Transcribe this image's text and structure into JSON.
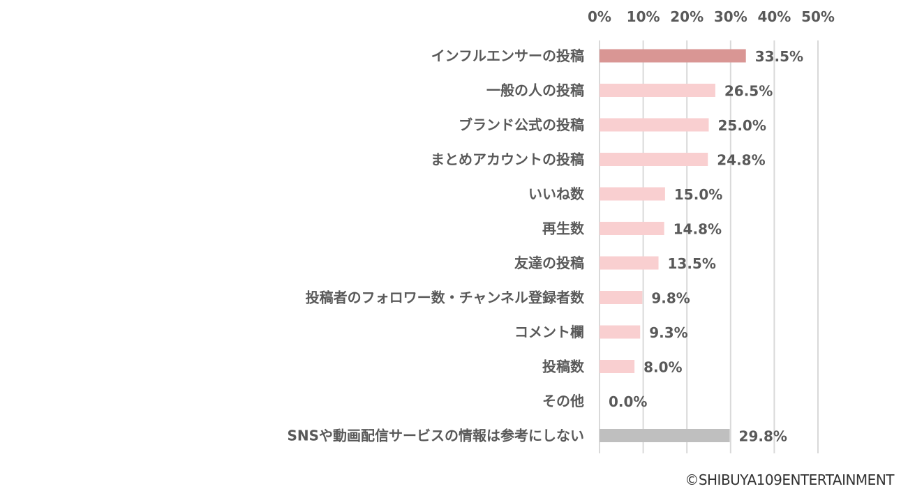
{
  "chart_data": {
    "type": "bar",
    "orientation": "horizontal",
    "categories": [
      "インフルエンサーの投稿",
      "一般の人の投稿",
      "ブランド公式の投稿",
      "まとめアカウントの投稿",
      "いいね数",
      "再生数",
      "友達の投稿",
      "投稿者のフォロワー数・チャンネル登録者数",
      "コメント欄",
      "投稿数",
      "その他",
      "SNSや動画配信サービスの情報は参考にしない"
    ],
    "values": [
      33.5,
      26.5,
      25.0,
      24.8,
      15.0,
      14.8,
      13.5,
      9.8,
      9.3,
      8.0,
      0.0,
      29.8
    ],
    "value_labels": [
      "33.5%",
      "26.5%",
      "25.0%",
      "24.8%",
      "15.0%",
      "14.8%",
      "13.5%",
      "9.8%",
      "9.3%",
      "8.0%",
      "0.0%",
      "29.8%"
    ],
    "bar_colors": [
      "#d99694",
      "#f9cfd0",
      "#f9cfd0",
      "#f9cfd0",
      "#f9cfd0",
      "#f9cfd0",
      "#f9cfd0",
      "#f9cfd0",
      "#f9cfd0",
      "#f9cfd0",
      "#f9cfd0",
      "#bfbfbf"
    ],
    "x_ticks": [
      "0%",
      "10%",
      "20%",
      "30%",
      "40%",
      "50%"
    ],
    "xlim": [
      0,
      50
    ],
    "axis_position": "top",
    "grid": true,
    "title": "",
    "xlabel": "",
    "ylabel": ""
  },
  "footer": {
    "copyright": "©SHIBUYA109ENTERTAINMENT"
  }
}
